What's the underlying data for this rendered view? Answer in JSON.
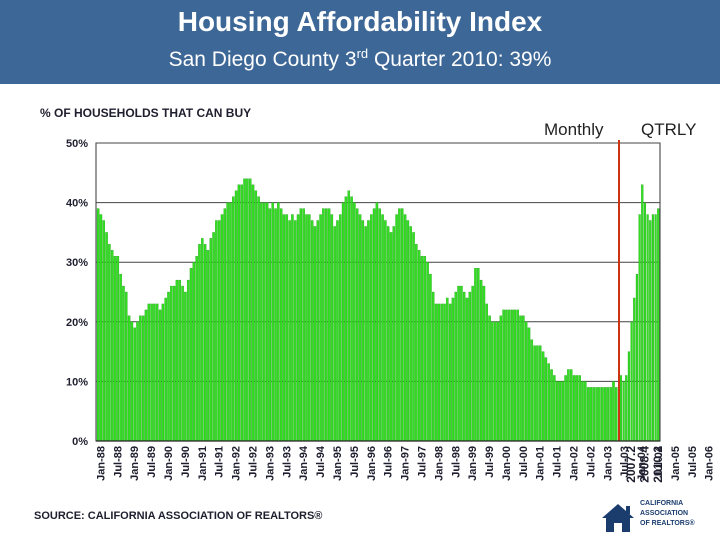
{
  "header": {
    "title": "Housing Affordability Index",
    "subtitle_pre": "San Diego County 3",
    "subtitle_sup": "rd",
    "subtitle_post": " Quarter 2010: 39%",
    "background": "#3d6796"
  },
  "labels": {
    "monthly": "Monthly",
    "qtrly": "QTRLY",
    "source": "SOURCE: CALIFORNIA ASSOCIATION OF REALTORS®"
  },
  "logo": {
    "icon": "house-logo-icon",
    "text": "CALIFORNIA\nASSOCIATION\nOF REALTORS®"
  },
  "chart_data": {
    "type": "bar",
    "ylabel": "% OF HOUSEHOLDS THAT CAN BUY",
    "ylim": [
      0,
      50
    ],
    "yticks": [
      "0%",
      "10%",
      "20%",
      "30%",
      "40%",
      "50%"
    ],
    "grid": true,
    "bar_color": "#33dd22",
    "divider_color": "#cc3311",
    "monthly_x_labels": [
      "Jan-88",
      "Jul-88",
      "Jan-89",
      "Jul-89",
      "Jan-90",
      "Jul-90",
      "Jan-91",
      "Jul-91",
      "Jan-92",
      "Jul-92",
      "Jan-93",
      "Jul-93",
      "Jan-94",
      "Jul-94",
      "Jan-95",
      "Jul-95",
      "Jan-96",
      "Jul-96",
      "Jan-97",
      "Jul-97",
      "Jan-98",
      "Jul-98",
      "Jan-99",
      "Jul-99",
      "Jan-00",
      "Jul-00",
      "Jan-01",
      "Jul-01",
      "Jan-02",
      "Jul-02",
      "Jan-03",
      "Jul-03",
      "Jan-04",
      "Jul-04",
      "Jan-05",
      "Jul-05",
      "Jan-06"
    ],
    "monthly_values": [
      39,
      38,
      37,
      35,
      33,
      32,
      31,
      31,
      28,
      26,
      25,
      21,
      20,
      19,
      20,
      21,
      21,
      22,
      23,
      23,
      23,
      23,
      22,
      23,
      24,
      25,
      26,
      26,
      27,
      27,
      26,
      25,
      27,
      29,
      30,
      31,
      33,
      34,
      33,
      32,
      34,
      35,
      37,
      37,
      38,
      39,
      40,
      40,
      41,
      42,
      43,
      43,
      44,
      44,
      44,
      43,
      42,
      41,
      40,
      40,
      40,
      39,
      40,
      39,
      40,
      39,
      38,
      38,
      37,
      38,
      37,
      38,
      39,
      39,
      38,
      38,
      37,
      36,
      37,
      38,
      39,
      39,
      39,
      38,
      36,
      37,
      38,
      40,
      41,
      42,
      41,
      40,
      39,
      38,
      37,
      36,
      37,
      38,
      39,
      40,
      39,
      38,
      37,
      36,
      35,
      36,
      38,
      39,
      39,
      38,
      37,
      36,
      35,
      33,
      32,
      31,
      31,
      30,
      28,
      25,
      23,
      23,
      23,
      23,
      24,
      23,
      24,
      25,
      26,
      26,
      25,
      24,
      25,
      26,
      29,
      29,
      27,
      26,
      23,
      21,
      20,
      20,
      20,
      21,
      22,
      22,
      22,
      22,
      22,
      22,
      21,
      21,
      20,
      19,
      17,
      16,
      16,
      16,
      15,
      14,
      13,
      12,
      11,
      10,
      10,
      10,
      11,
      12,
      12,
      11,
      11,
      11,
      10,
      10,
      9,
      9,
      9,
      9,
      9,
      9,
      9,
      9,
      9,
      10,
      9
    ],
    "qtrly_x_labels": [
      "2007.2",
      "2008.4",
      "2010.2"
    ],
    "qtrly_values": [
      11,
      10,
      11,
      15,
      20,
      24,
      28,
      38,
      43,
      40,
      38,
      37,
      38,
      38,
      39
    ]
  }
}
